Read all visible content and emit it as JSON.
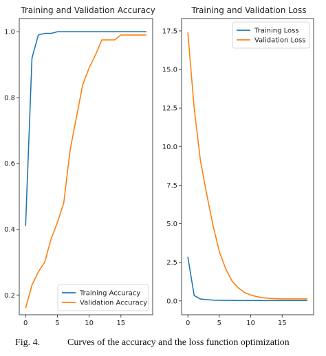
{
  "caption": {
    "number": "Fig. 4.",
    "text": "Curves of the accuracy and the loss function optimization"
  },
  "colors": {
    "training": "#1f77b4",
    "validation": "#ff7f0e"
  },
  "chart_data": [
    {
      "type": "line",
      "title": "Training and Validation Accuracy",
      "xlabel": "",
      "ylabel": "",
      "xlim": [
        -1,
        20
      ],
      "ylim": [
        0.14,
        1.04
      ],
      "xticks": [
        0,
        5,
        10,
        15
      ],
      "yticks": [
        0.2,
        0.4,
        0.6,
        0.8,
        1.0
      ],
      "ytick_labels": [
        "0.2",
        "0.4",
        "0.6",
        "0.8",
        "1.0"
      ],
      "grid": false,
      "legend": "lower-right",
      "x": [
        0,
        1,
        2,
        3,
        4,
        5,
        6,
        7,
        8,
        9,
        10,
        11,
        12,
        13,
        14,
        15,
        16,
        17,
        18,
        19
      ],
      "series": [
        {
          "name": "Training Accuracy",
          "color": "#1f77b4",
          "values": [
            0.41,
            0.92,
            0.99,
            0.995,
            0.995,
            1.0,
            1.0,
            1.0,
            1.0,
            1.0,
            1.0,
            1.0,
            1.0,
            1.0,
            1.0,
            1.0,
            1.0,
            1.0,
            1.0,
            1.0
          ]
        },
        {
          "name": "Validation Accuracy",
          "color": "#ff7f0e",
          "values": [
            0.16,
            0.23,
            0.27,
            0.3,
            0.37,
            0.42,
            0.48,
            0.64,
            0.74,
            0.84,
            0.89,
            0.93,
            0.975,
            0.975,
            0.975,
            0.99,
            0.99,
            0.99,
            0.99,
            0.99
          ]
        }
      ]
    },
    {
      "type": "line",
      "title": "Training and Validation Loss",
      "xlabel": "",
      "ylabel": "",
      "xlim": [
        -1,
        20
      ],
      "ylim": [
        -0.9,
        18.3
      ],
      "xticks": [
        0,
        5,
        10,
        15
      ],
      "yticks": [
        0.0,
        2.5,
        5.0,
        7.5,
        10.0,
        12.5,
        15.0,
        17.5
      ],
      "ytick_labels": [
        "0.0",
        "2.5",
        "5.0",
        "7.5",
        "10.0",
        "12.5",
        "15.0",
        "17.5"
      ],
      "grid": false,
      "legend": "upper-right",
      "x": [
        0,
        1,
        2,
        3,
        4,
        5,
        6,
        7,
        8,
        9,
        10,
        11,
        12,
        13,
        14,
        15,
        16,
        17,
        18,
        19
      ],
      "series": [
        {
          "name": "Training Loss",
          "color": "#1f77b4",
          "values": [
            2.85,
            0.35,
            0.12,
            0.08,
            0.05,
            0.04,
            0.03,
            0.03,
            0.02,
            0.02,
            0.02,
            0.02,
            0.02,
            0.02,
            0.02,
            0.02,
            0.02,
            0.02,
            0.02,
            0.02
          ]
        },
        {
          "name": "Validation Loss",
          "color": "#ff7f0e",
          "values": [
            17.4,
            12.5,
            9.1,
            6.9,
            4.9,
            3.2,
            2.1,
            1.3,
            0.85,
            0.55,
            0.38,
            0.27,
            0.2,
            0.16,
            0.14,
            0.13,
            0.13,
            0.13,
            0.13,
            0.13
          ]
        }
      ]
    }
  ]
}
